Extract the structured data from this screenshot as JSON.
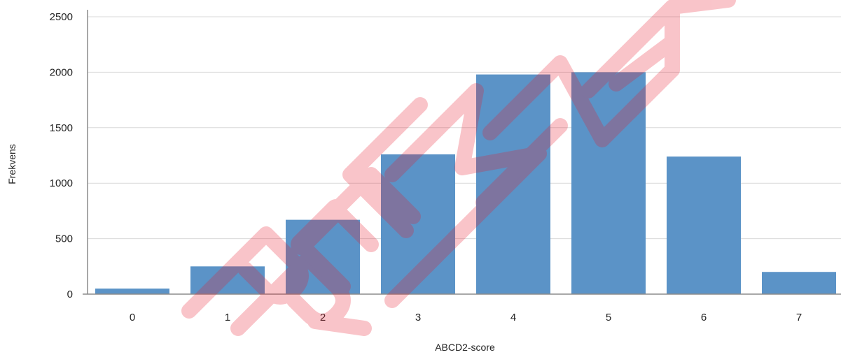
{
  "chart_data": {
    "type": "bar",
    "categories": [
      "0",
      "1",
      "2",
      "3",
      "4",
      "5",
      "6",
      "7"
    ],
    "values": [
      50,
      250,
      670,
      1260,
      1980,
      2000,
      1240,
      200
    ],
    "xlabel": "ABCD2-score",
    "ylabel": "Frekvens",
    "ylim": [
      0,
      2500
    ],
    "yticks": [
      "0",
      "500",
      "1000",
      "1500",
      "2000",
      "2500"
    ],
    "grid": "horizontal",
    "legend": "none",
    "colors": {
      "bar": "#5b93c7",
      "watermark": "#e8192c"
    }
  }
}
